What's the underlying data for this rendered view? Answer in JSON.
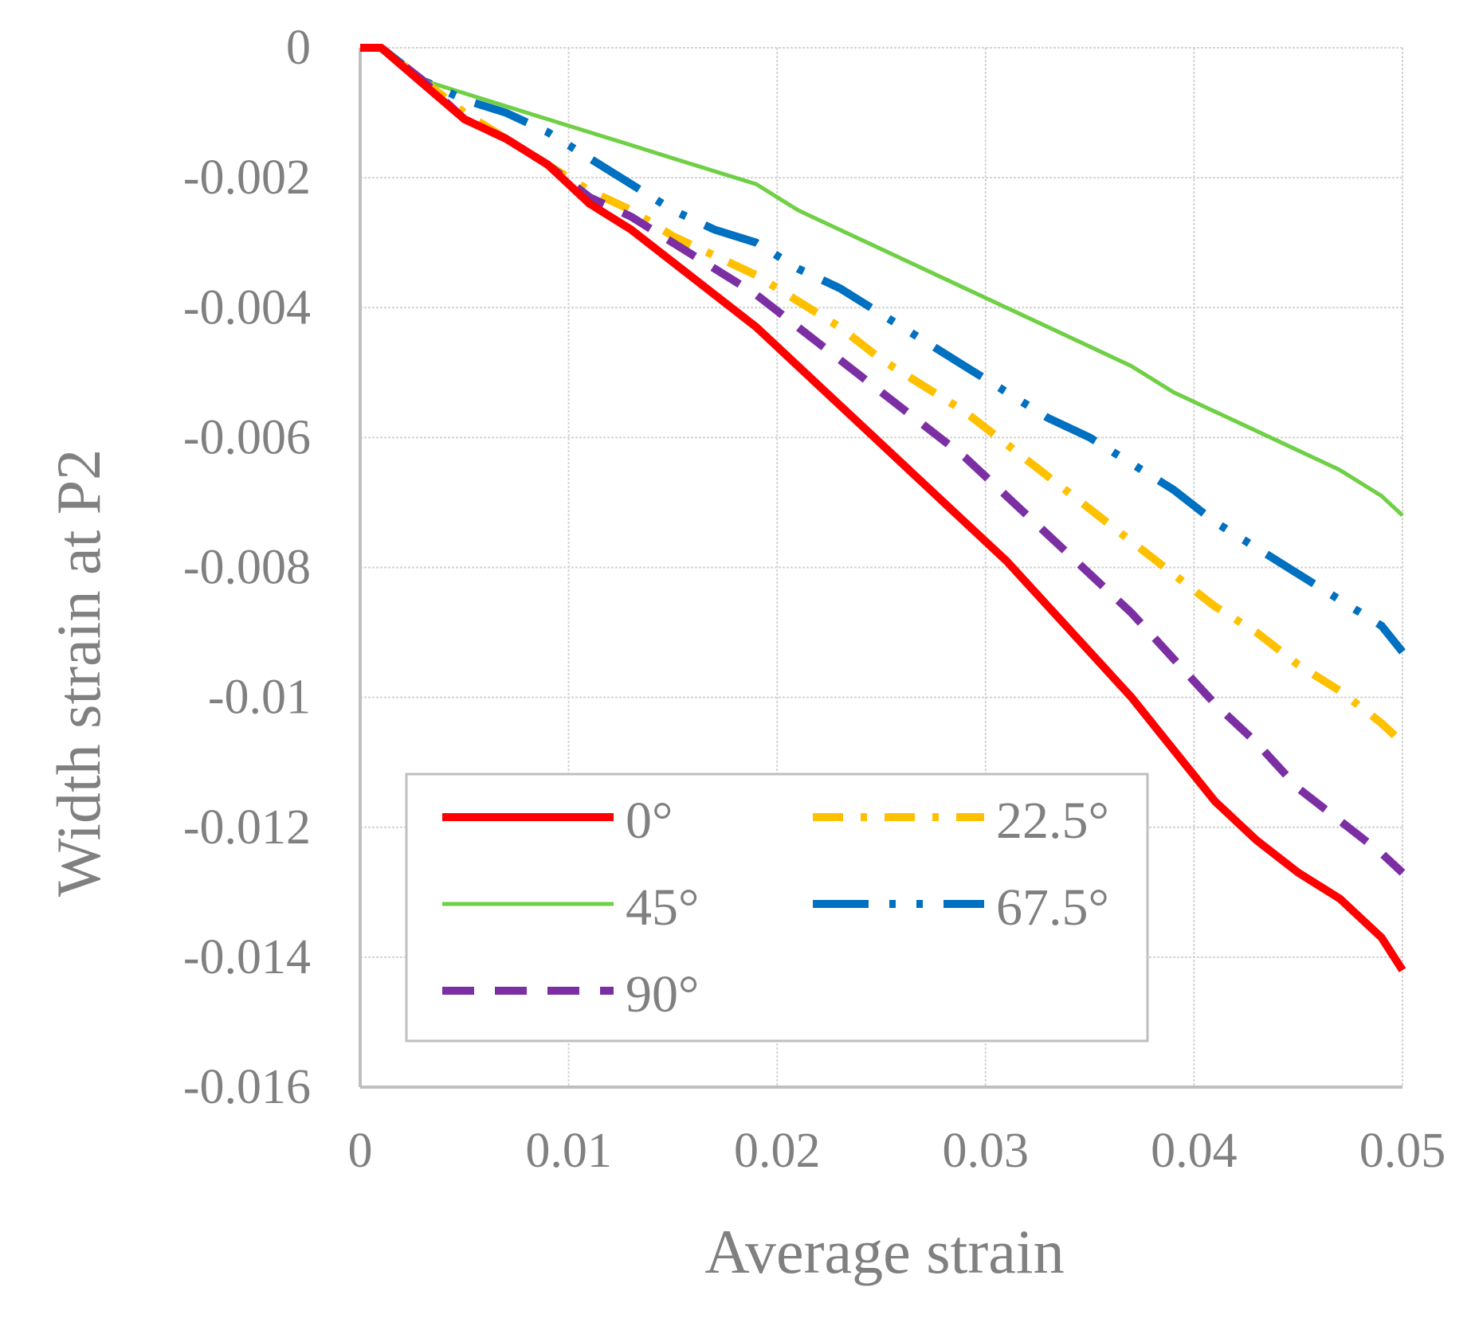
{
  "chart_data": {
    "type": "line",
    "title": "",
    "xlabel": "Average strain",
    "ylabel": "Width strain at P2",
    "xlim": [
      0,
      0.05
    ],
    "ylim": [
      -0.016,
      0
    ],
    "xticks": [
      0,
      0.01,
      0.02,
      0.03,
      0.04,
      0.05
    ],
    "xtick_labels": [
      "0",
      "0.01",
      "0.02",
      "0.03",
      "0.04",
      "0.05"
    ],
    "yticks": [
      0,
      -0.002,
      -0.004,
      -0.006,
      -0.008,
      -0.01,
      -0.012,
      -0.014,
      -0.016
    ],
    "ytick_labels": [
      "0",
      "-0.002",
      "-0.004",
      "-0.006",
      "-0.008",
      "-0.01",
      "-0.012",
      "-0.014",
      "-0.016"
    ],
    "grid": true,
    "legend_position": "bottom-left inside plot",
    "series": [
      {
        "name": "0°",
        "color": "#ff0000",
        "line_style": "solid-thick",
        "x": [
          0,
          0.001,
          0.003,
          0.005,
          0.007,
          0.009,
          0.011,
          0.013,
          0.015,
          0.017,
          0.019,
          0.021,
          0.023,
          0.025,
          0.027,
          0.029,
          0.031,
          0.033,
          0.035,
          0.037,
          0.039,
          0.041,
          0.043,
          0.045,
          0.047,
          0.049,
          0.05
        ],
        "y": [
          0,
          0,
          -0.00055,
          -0.0011,
          -0.0014,
          -0.0018,
          -0.0024,
          -0.0028,
          -0.0033,
          -0.0038,
          -0.0043,
          -0.0049,
          -0.0055,
          -0.0061,
          -0.0067,
          -0.0073,
          -0.0079,
          -0.0086,
          -0.0093,
          -0.01,
          -0.0108,
          -0.0116,
          -0.0122,
          -0.0127,
          -0.0131,
          -0.0137,
          -0.0142
        ]
      },
      {
        "name": "45°",
        "color": "#6fcf45",
        "line_style": "solid-thin",
        "x": [
          0,
          0.001,
          0.003,
          0.005,
          0.007,
          0.009,
          0.011,
          0.013,
          0.015,
          0.017,
          0.019,
          0.021,
          0.023,
          0.025,
          0.027,
          0.029,
          0.031,
          0.033,
          0.035,
          0.037,
          0.039,
          0.041,
          0.043,
          0.045,
          0.047,
          0.049,
          0.05
        ],
        "y": [
          0,
          0,
          -0.0005,
          -0.0007,
          -0.0009,
          -0.0011,
          -0.0013,
          -0.0015,
          -0.0017,
          -0.0019,
          -0.0021,
          -0.0025,
          -0.0028,
          -0.0031,
          -0.0034,
          -0.0037,
          -0.004,
          -0.0043,
          -0.0046,
          -0.0049,
          -0.0053,
          -0.0056,
          -0.0059,
          -0.0062,
          -0.0065,
          -0.0069,
          -0.0072
        ]
      },
      {
        "name": "90°",
        "color": "#7b2fa3",
        "line_style": "dash",
        "x": [
          0,
          0.001,
          0.003,
          0.005,
          0.007,
          0.009,
          0.011,
          0.013,
          0.015,
          0.017,
          0.019,
          0.021,
          0.023,
          0.025,
          0.027,
          0.029,
          0.031,
          0.033,
          0.035,
          0.037,
          0.039,
          0.041,
          0.043,
          0.045,
          0.047,
          0.049,
          0.05
        ],
        "y": [
          0,
          0,
          -0.0005,
          -0.0011,
          -0.0014,
          -0.0018,
          -0.0023,
          -0.0026,
          -0.003,
          -0.0034,
          -0.0038,
          -0.0043,
          -0.0048,
          -0.0053,
          -0.0058,
          -0.0063,
          -0.0069,
          -0.0075,
          -0.0081,
          -0.0087,
          -0.0094,
          -0.0101,
          -0.0107,
          -0.0114,
          -0.0119,
          -0.0124,
          -0.0127
        ]
      },
      {
        "name": "22.5°",
        "color": "#ffc000",
        "line_style": "dash-dot",
        "x": [
          0,
          0.001,
          0.003,
          0.005,
          0.007,
          0.009,
          0.011,
          0.013,
          0.015,
          0.017,
          0.019,
          0.021,
          0.023,
          0.025,
          0.027,
          0.029,
          0.031,
          0.033,
          0.035,
          0.037,
          0.039,
          0.041,
          0.043,
          0.045,
          0.047,
          0.049,
          0.05
        ],
        "y": [
          0,
          0,
          -0.0005,
          -0.001,
          -0.0014,
          -0.0018,
          -0.0022,
          -0.0025,
          -0.0029,
          -0.0032,
          -0.0035,
          -0.0039,
          -0.0043,
          -0.0048,
          -0.0052,
          -0.0056,
          -0.0061,
          -0.0066,
          -0.0071,
          -0.0076,
          -0.0081,
          -0.0086,
          -0.009,
          -0.0095,
          -0.0099,
          -0.0104,
          -0.0107
        ]
      },
      {
        "name": "67.5°",
        "color": "#0070c0",
        "line_style": "long-dash-dot-dot",
        "x": [
          0,
          0.001,
          0.003,
          0.005,
          0.007,
          0.009,
          0.011,
          0.013,
          0.015,
          0.017,
          0.019,
          0.021,
          0.023,
          0.025,
          0.027,
          0.029,
          0.031,
          0.033,
          0.035,
          0.037,
          0.039,
          0.041,
          0.043,
          0.045,
          0.047,
          0.049,
          0.05
        ],
        "y": [
          0,
          0,
          -0.0005,
          -0.0008,
          -0.001,
          -0.0013,
          -0.0017,
          -0.0021,
          -0.0025,
          -0.0028,
          -0.003,
          -0.0034,
          -0.0037,
          -0.0041,
          -0.0045,
          -0.0049,
          -0.0053,
          -0.0057,
          -0.006,
          -0.0064,
          -0.0068,
          -0.0073,
          -0.0077,
          -0.0081,
          -0.0085,
          -0.0089,
          -0.0093
        ]
      }
    ]
  }
}
